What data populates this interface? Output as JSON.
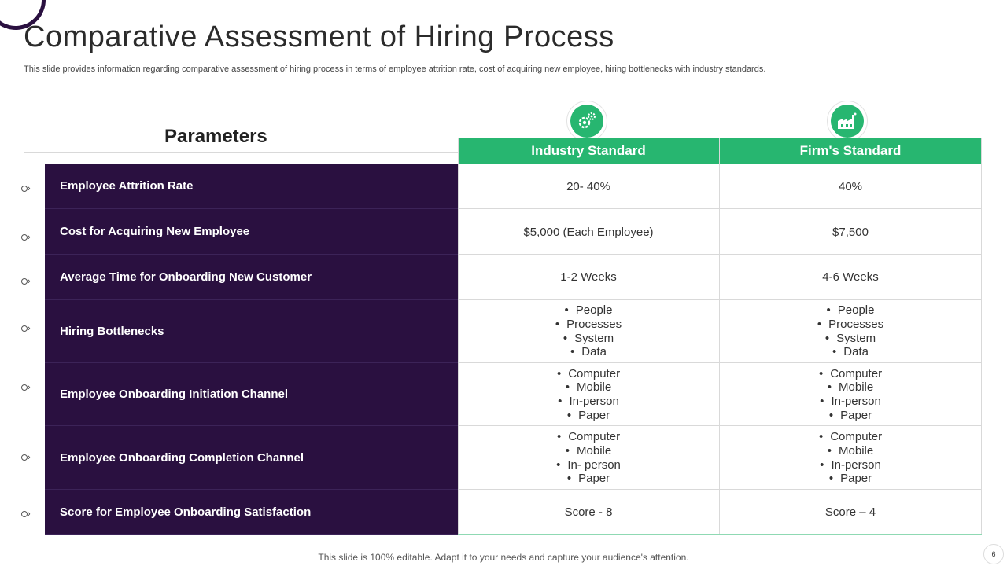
{
  "slide": {
    "title": "Comparative  Assessment  of Hiring Process",
    "subtitle": "This slide provides information regarding comparative assessment of hiring process in terms of employee attrition rate, cost of acquiring new employee, hiring bottlenecks with industry standards.",
    "parameters_heading": "Parameters",
    "footer": "This slide is 100% editable. Adapt it to your needs and capture your audience's attention.",
    "page_number": "6"
  },
  "columns": {
    "industry": {
      "label": "Industry Standard",
      "icon": "gears-icon"
    },
    "firm": {
      "label": "Firm's Standard",
      "icon": "factory-icon"
    }
  },
  "colors": {
    "accent_green": "#27b670",
    "dark_purple": "#2a1040"
  },
  "rows": [
    {
      "label": "Employee Attrition Rate",
      "industry": "20- 40%",
      "firm": "40%"
    },
    {
      "label": "Cost for Acquiring  New Employee",
      "industry": "$5,000 (Each Employee)",
      "firm": "$7,500"
    },
    {
      "label": "Average Time for Onboarding New Customer",
      "industry": "1-2 Weeks",
      "firm": "4-6 Weeks"
    },
    {
      "label": "Hiring Bottlenecks",
      "industry_list": [
        "People",
        "Processes",
        "System",
        "Data"
      ],
      "firm_list": [
        "People",
        "Processes",
        "System",
        "Data"
      ]
    },
    {
      "label": "Employee Onboarding Initiation Channel",
      "industry_list": [
        "Computer",
        "Mobile",
        "In-person",
        "Paper"
      ],
      "firm_list": [
        "Computer",
        "Mobile",
        "In-person",
        "Paper"
      ]
    },
    {
      "label": "Employee Onboarding Completion Channel",
      "industry_list": [
        "Computer",
        "Mobile",
        "In- person",
        "Paper"
      ],
      "firm_list": [
        "Computer",
        "Mobile",
        "In-person",
        "Paper"
      ]
    },
    {
      "label": "Score for Employee Onboarding Satisfaction",
      "industry": "Score - 8",
      "firm": "Score – 4"
    }
  ]
}
